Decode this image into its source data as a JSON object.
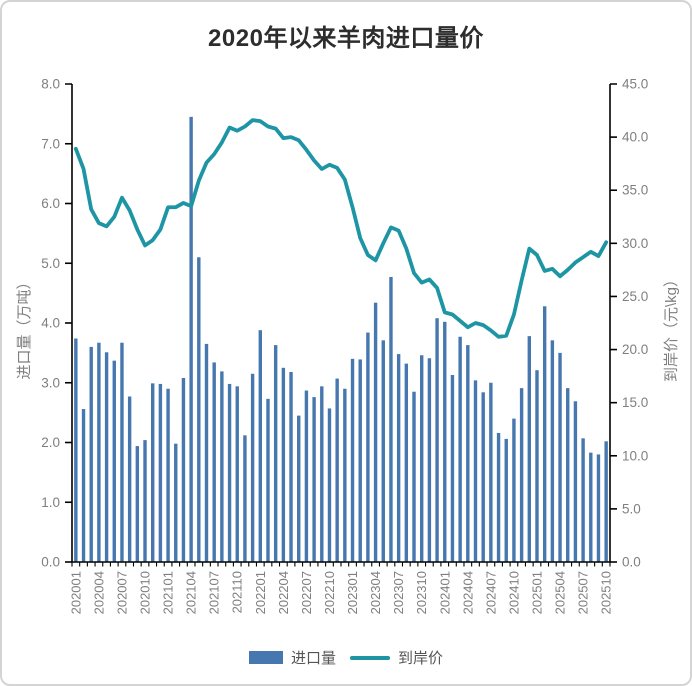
{
  "title": "2020年以来羊肉进口量价",
  "colors": {
    "bar": "#4677ae",
    "line": "#1e95a5",
    "axis_line": "#000000",
    "tick_label": "#7f7f7f",
    "title_text": "#2d2d2d",
    "legend_text": "#555555",
    "frame_border": "#d4d4d4"
  },
  "chart_data": {
    "type": "bar+line combo, dual axis",
    "title": "2020年以来羊肉进口量价",
    "x": [
      "202001",
      "202002",
      "202003",
      "202004",
      "202005",
      "202006",
      "202007",
      "202008",
      "202009",
      "202010",
      "202011",
      "202012",
      "202101",
      "202102",
      "202103",
      "202104",
      "202105",
      "202106",
      "202107",
      "202108",
      "202109",
      "202110",
      "202111",
      "202112",
      "202201",
      "202202",
      "202203",
      "202204",
      "202205",
      "202206",
      "202207",
      "202208",
      "202209",
      "202210",
      "202211",
      "202212",
      "202301",
      "202302",
      "202303",
      "202304",
      "202305",
      "202306",
      "202307",
      "202308",
      "202309",
      "202310",
      "202311",
      "202312",
      "202401",
      "202402",
      "202403",
      "202404",
      "202405",
      "202406",
      "202407",
      "202408",
      "202409",
      "202410",
      "202411",
      "202412",
      "202501",
      "202502",
      "202503",
      "202504",
      "202505",
      "202506",
      "202507",
      "202508",
      "202509",
      "202510"
    ],
    "x_label_every": 3,
    "series": [
      {
        "name": "进口量",
        "type": "bar",
        "axis": "left",
        "values": [
          3.74,
          2.56,
          3.6,
          3.67,
          3.51,
          3.37,
          3.67,
          2.77,
          1.94,
          2.04,
          2.99,
          2.98,
          2.9,
          1.98,
          3.08,
          7.45,
          5.1,
          3.65,
          3.34,
          3.19,
          2.98,
          2.94,
          2.12,
          3.15,
          3.88,
          2.73,
          3.63,
          3.25,
          3.18,
          2.45,
          2.87,
          2.76,
          2.94,
          2.57,
          3.07,
          2.9,
          3.4,
          3.39,
          3.84,
          4.34,
          3.71,
          4.77,
          3.48,
          3.32,
          2.85,
          3.46,
          3.41,
          4.08,
          4.02,
          3.13,
          3.77,
          3.63,
          3.04,
          2.84,
          3.0,
          2.16,
          2.06,
          2.4,
          2.91,
          3.78,
          3.21,
          4.28,
          3.71,
          3.5,
          2.91,
          2.69,
          2.07,
          1.83,
          1.8,
          2.02
        ]
      },
      {
        "name": "到岸价",
        "type": "line",
        "axis": "right",
        "values": [
          38.9,
          37.0,
          33.2,
          31.9,
          31.6,
          32.5,
          34.3,
          33.1,
          31.3,
          29.8,
          30.3,
          31.3,
          33.4,
          33.4,
          33.8,
          33.5,
          35.9,
          37.6,
          38.4,
          39.5,
          40.9,
          40.6,
          41.0,
          41.6,
          41.5,
          41.0,
          40.8,
          39.9,
          40.0,
          39.7,
          38.8,
          37.8,
          37.0,
          37.4,
          37.1,
          36.0,
          33.4,
          30.5,
          28.9,
          28.4,
          30.0,
          31.5,
          31.2,
          29.5,
          27.2,
          26.3,
          26.6,
          25.8,
          23.5,
          23.3,
          22.7,
          22.1,
          22.5,
          22.3,
          21.8,
          21.2,
          21.3,
          23.3,
          26.5,
          29.5,
          28.9,
          27.4,
          27.6,
          26.9,
          27.5,
          28.2,
          28.7,
          29.2,
          28.8,
          30.1
        ]
      }
    ],
    "left_axis": {
      "title": "进口量（万吨）",
      "min": 0,
      "max": 8,
      "step": 1,
      "tick_labels": [
        "0.0",
        "1.0",
        "2.0",
        "3.0",
        "4.0",
        "5.0",
        "6.0",
        "7.0",
        "8.0"
      ]
    },
    "right_axis": {
      "title": "到岸价（元\\kg）",
      "min": 0,
      "max": 45,
      "step": 5,
      "tick_labels": [
        "0.0",
        "5.0",
        "10.0",
        "15.0",
        "20.0",
        "25.0",
        "30.0",
        "35.0",
        "40.0",
        "45.0"
      ]
    },
    "legend": [
      "进口量",
      "到岸价"
    ],
    "grid": "none",
    "legend_position": "bottom-center"
  }
}
